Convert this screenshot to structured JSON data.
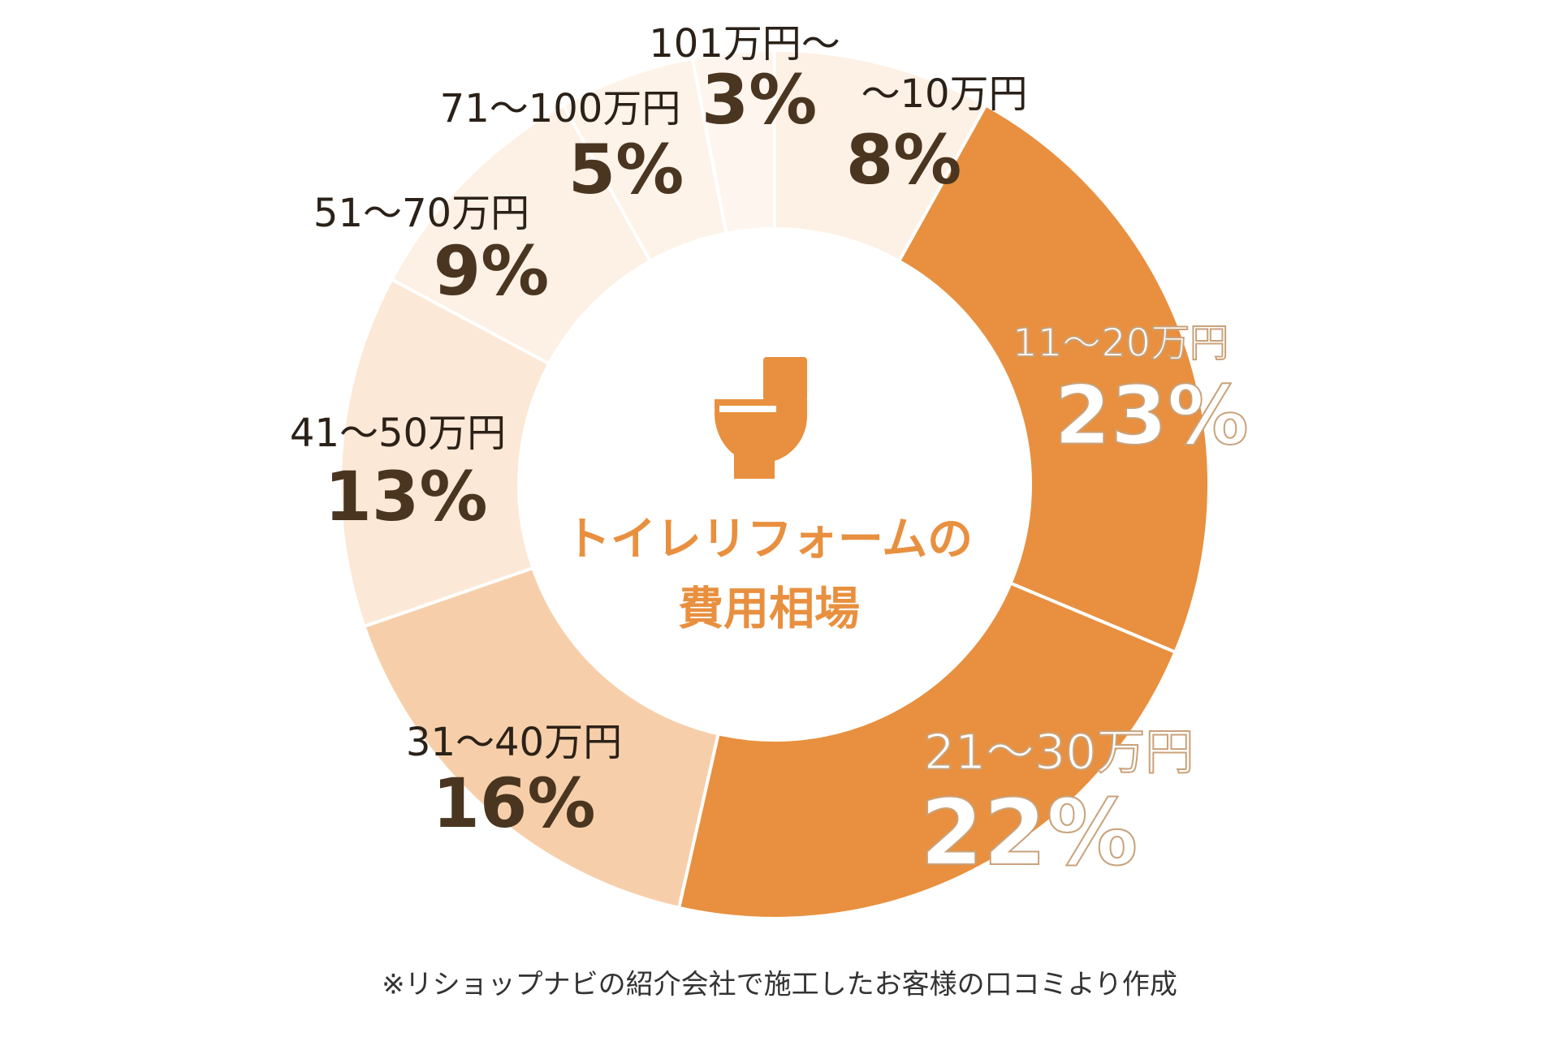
{
  "chart_data": {
    "type": "pie",
    "donut": true,
    "start": "top",
    "direction": "clockwise",
    "center_title": [
      "トイレリフォームの",
      "費用相場"
    ],
    "center_icon": "toilet-icon",
    "categories": [
      "〜10万円",
      "11〜20万円",
      "21〜30万円",
      "31〜40万円",
      "41〜50万円",
      "51〜70万円",
      "71〜100万円",
      "101万円〜"
    ],
    "values": [
      8,
      23,
      22,
      16,
      13,
      9,
      5,
      3
    ],
    "value_labels": [
      "8%",
      "23%",
      "22%",
      "16%",
      "13%",
      "9%",
      "5%",
      "3%"
    ],
    "colors": [
      "#fdf0e4",
      "#e8903f",
      "#e8903f",
      "#f6cfaa",
      "#fce8d6",
      "#fdf0e4",
      "#fdf3e9",
      "#fef6ee"
    ],
    "footnote": "※リショップナビの紹介会社で施工したお客様の口コミより作成"
  }
}
